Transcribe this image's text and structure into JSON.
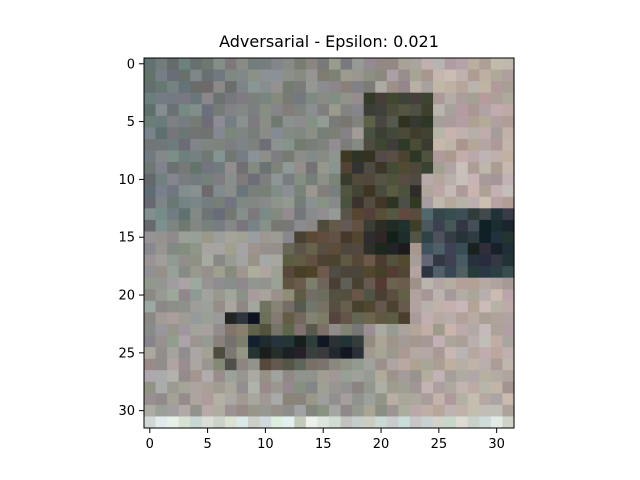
{
  "title": "Adversarial - Epsilon: 0.021",
  "image": {
    "rows": 32,
    "cols": 32,
    "description_palette": [
      "#7e7d78",
      "#8f8f8a",
      "#a9a49c",
      "#b9b0a8",
      "#4b5b57",
      "#3e4337",
      "#26231c",
      "#1e2e38",
      "#c9d3d0"
    ]
  },
  "x_axis": {
    "ticks": [
      "0",
      "5",
      "10",
      "15",
      "20",
      "25",
      "30"
    ]
  },
  "y_axis": {
    "ticks": [
      "0",
      "5",
      "10",
      "15",
      "20",
      "25",
      "30"
    ]
  }
}
